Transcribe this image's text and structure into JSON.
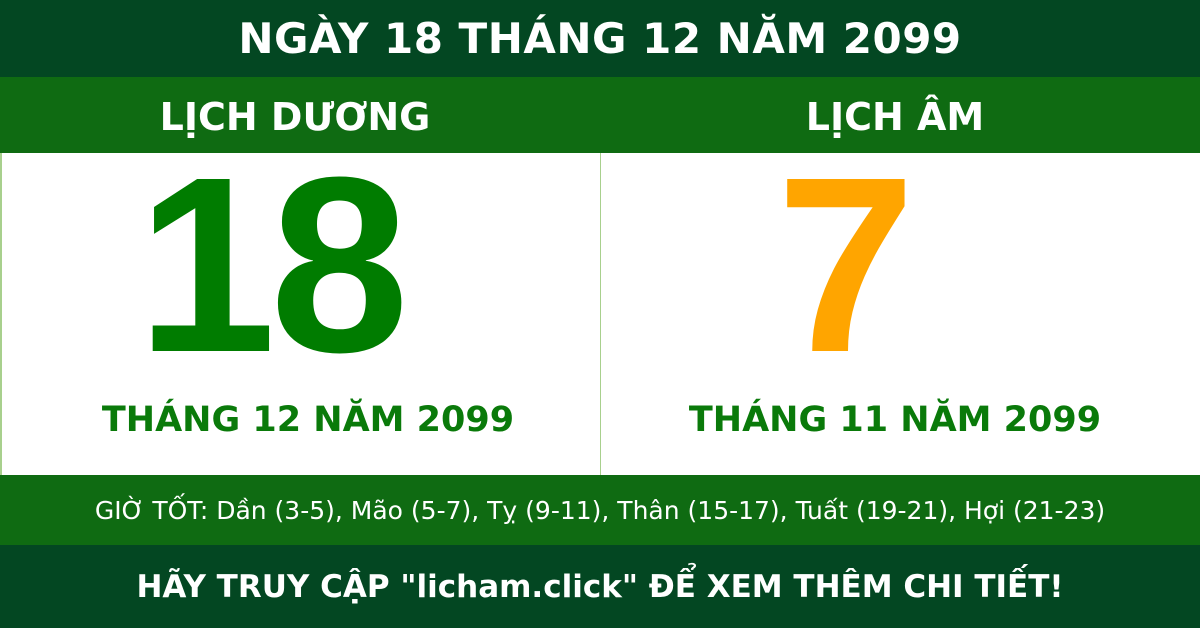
{
  "header": {
    "title": "NGÀY 18 THÁNG 12 NĂM 2099"
  },
  "solar": {
    "label": "LỊCH DƯƠNG",
    "day": "18",
    "month_year": "THÁNG 12 NĂM 2099"
  },
  "lunar": {
    "label": "LỊCH ÂM",
    "day": "7",
    "month_year": "THÁNG 11 NĂM 2099"
  },
  "good_hours": "GIỜ TỐT: Dần (3-5), Mão (5-7), Tỵ (9-11), Thân (15-17), Tuất (19-21), Hợi (21-23)",
  "footer": "HÃY TRUY CẬP \"licham.click\" ĐỂ XEM THÊM CHI TIẾT!",
  "colors": {
    "dark_green": "#034722",
    "green": "#0f6b12",
    "solar_day": "#007c00",
    "lunar_day": "#ffa500"
  }
}
